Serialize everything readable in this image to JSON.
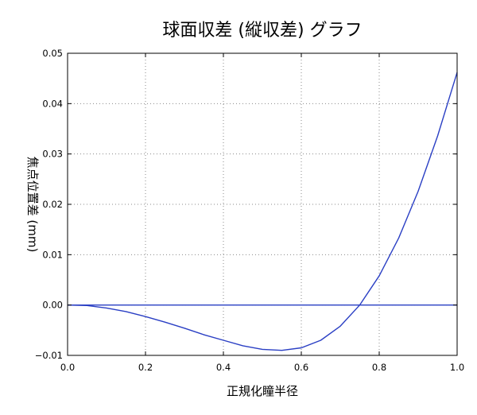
{
  "chart_data": {
    "type": "line",
    "title": "球面収差 (縦収差) グラフ",
    "xlabel": "正規化瞳半径",
    "ylabel": "焦点位置差 (mm)",
    "xlim": [
      0.0,
      1.0
    ],
    "ylim": [
      -0.01,
      0.05
    ],
    "grid": true,
    "xticks": [
      0.0,
      0.2,
      0.4,
      0.6,
      0.8,
      1.0
    ],
    "xtick_labels": [
      "0.0",
      "0.2",
      "0.4",
      "0.6",
      "0.8",
      "1.0"
    ],
    "yticks": [
      -0.01,
      0.0,
      0.01,
      0.02,
      0.03,
      0.04,
      0.05
    ],
    "ytick_labels": [
      "−0.01",
      "0.00",
      "0.01",
      "0.02",
      "0.03",
      "0.04",
      "0.05"
    ],
    "series": [
      {
        "color": "#2a3fc4",
        "x": [
          0.0,
          0.05,
          0.1,
          0.15,
          0.2,
          0.25,
          0.3,
          0.35,
          0.4,
          0.45,
          0.5,
          0.55,
          0.6,
          0.65,
          0.7,
          0.75,
          0.8,
          0.85,
          0.9,
          0.95,
          1.0
        ],
        "y": [
          0.0,
          -0.0001,
          -0.0006,
          -0.0013,
          -0.0023,
          -0.0034,
          -0.0046,
          -0.0059,
          -0.007,
          -0.0081,
          -0.0088,
          -0.009,
          -0.0085,
          -0.007,
          -0.0042,
          0.0,
          0.0058,
          0.0133,
          0.0226,
          0.0336,
          0.0462
        ]
      },
      {
        "color": "#2a3fc4",
        "x": [
          0.0,
          1.0
        ],
        "y": [
          0.0,
          0.0
        ]
      }
    ]
  }
}
